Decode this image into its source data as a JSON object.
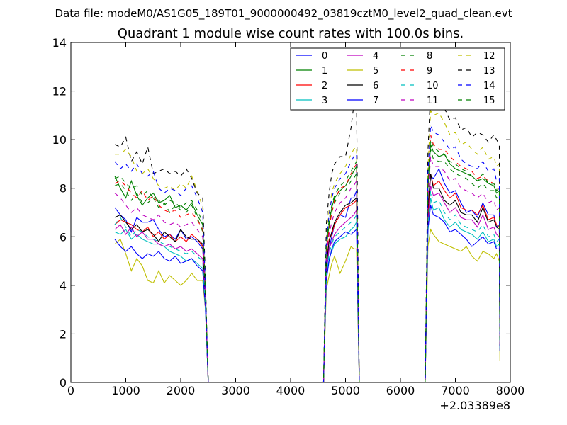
{
  "page": {
    "suptitle": "Data file: modeM0/AS1G05_189T01_9000000492_03819cztM0_level2_quad_clean.evt"
  },
  "chart_data": {
    "type": "line",
    "title": "Quadrant 1 module wise count rates with 100.0s bins.",
    "xlabel": "",
    "ylabel": "",
    "x_offset_label": "+2.03389e8",
    "xlim": [
      0,
      8000
    ],
    "ylim": [
      0,
      14
    ],
    "x_ticks": [
      0,
      1000,
      2000,
      3000,
      4000,
      5000,
      6000,
      7000,
      8000
    ],
    "y_ticks": [
      0,
      2,
      4,
      6,
      8,
      10,
      12,
      14
    ],
    "x_tick_labels": [
      "0",
      "1000",
      "2000",
      "3000",
      "4000",
      "5000",
      "6000",
      "7000",
      "8000"
    ],
    "y_tick_labels": [
      "0",
      "2",
      "4",
      "6",
      "8",
      "10",
      "12",
      "14"
    ],
    "grid": false,
    "legend_position": "top-right",
    "x": [
      800,
      900,
      1000,
      1100,
      1200,
      1300,
      1400,
      1500,
      1600,
      1700,
      1800,
      1900,
      2000,
      2100,
      2200,
      2300,
      2400,
      2450,
      2500,
      2600,
      2800,
      3000,
      3500,
      4000,
      4500,
      4600,
      4650,
      4700,
      4750,
      4800,
      4900,
      5000,
      5100,
      5150,
      5200,
      5250,
      5300,
      5400,
      5600,
      6000,
      6400,
      6450,
      6500,
      6550,
      6600,
      6700,
      6800,
      6900,
      7000,
      7100,
      7200,
      7300,
      7400,
      7500,
      7600,
      7700,
      7750,
      7800,
      7810
    ],
    "series": [
      {
        "name": "0",
        "color": "#0000ff",
        "dash": false,
        "values": [
          7.2,
          6.9,
          6.7,
          6.2,
          6.8,
          6.6,
          6.6,
          6.7,
          6.3,
          6.0,
          6.1,
          5.9,
          6.3,
          5.9,
          6.0,
          5.8,
          5.5,
          3.5,
          0,
          0,
          0,
          0,
          0,
          0,
          0,
          0,
          4.5,
          5.5,
          6.0,
          6.5,
          6.9,
          6.8,
          7.6,
          7.6,
          7.9,
          0,
          0,
          0,
          0,
          0,
          0,
          0,
          7.0,
          8.5,
          8.4,
          8.8,
          8.2,
          7.8,
          7.9,
          7.4,
          7.0,
          7.1,
          6.8,
          7.4,
          6.9,
          6.9,
          6.4,
          6.5,
          1.5
        ]
      },
      {
        "name": "1",
        "color": "#008000",
        "dash": false,
        "values": [
          8.5,
          8.0,
          7.6,
          8.3,
          7.7,
          7.3,
          7.6,
          7.8,
          7.4,
          7.5,
          7.7,
          7.2,
          7.3,
          7.1,
          7.4,
          6.9,
          6.5,
          3.8,
          0,
          0,
          0,
          0,
          0,
          0,
          0,
          0,
          5.5,
          6.5,
          7.2,
          7.6,
          7.9,
          8.1,
          8.5,
          8.7,
          8.9,
          0,
          0,
          0,
          0,
          0,
          0,
          0,
          8.0,
          9.8,
          9.5,
          9.3,
          9.4,
          9.0,
          8.8,
          8.7,
          8.6,
          8.5,
          8.3,
          8.4,
          8.2,
          8.1,
          7.8,
          7.9,
          1.7
        ]
      },
      {
        "name": "2",
        "color": "#ff0000",
        "dash": false,
        "values": [
          6.5,
          6.7,
          6.6,
          6.5,
          6.3,
          6.2,
          6.4,
          6.0,
          6.2,
          5.9,
          6.1,
          5.8,
          6.0,
          5.8,
          6.1,
          5.9,
          5.6,
          3.4,
          0,
          0,
          0,
          0,
          0,
          0,
          0,
          0,
          4.9,
          5.9,
          6.1,
          6.5,
          6.9,
          7.2,
          7.3,
          7.4,
          7.5,
          0,
          0,
          0,
          0,
          0,
          0,
          0,
          6.9,
          8.6,
          8.1,
          8.3,
          7.9,
          7.6,
          7.8,
          7.2,
          7.1,
          7.1,
          6.9,
          7.3,
          6.7,
          6.8,
          6.5,
          6.4,
          1.5
        ]
      },
      {
        "name": "3",
        "color": "#00bfbf",
        "dash": false,
        "values": [
          6.2,
          6.1,
          6.3,
          5.9,
          6.1,
          5.9,
          5.8,
          5.7,
          5.7,
          5.6,
          5.4,
          5.3,
          5.2,
          5.0,
          5.1,
          4.9,
          4.7,
          3.0,
          0,
          0,
          0,
          0,
          0,
          0,
          0,
          0,
          4.3,
          5.1,
          5.4,
          5.7,
          5.9,
          6.0,
          6.3,
          6.4,
          6.6,
          0,
          0,
          0,
          0,
          0,
          0,
          0,
          6.2,
          7.6,
          7.1,
          7.2,
          6.7,
          6.4,
          6.6,
          6.3,
          6.2,
          6.1,
          5.9,
          6.2,
          5.8,
          5.9,
          5.6,
          5.7,
          1.3
        ]
      },
      {
        "name": "4",
        "color": "#bf00bf",
        "dash": false,
        "values": [
          6.3,
          6.5,
          6.1,
          6.4,
          6.0,
          6.2,
          5.9,
          5.9,
          5.7,
          5.6,
          5.7,
          5.5,
          5.6,
          5.4,
          5.5,
          5.3,
          5.1,
          3.2,
          0,
          0,
          0,
          0,
          0,
          0,
          0,
          0,
          4.6,
          5.5,
          5.8,
          6.1,
          6.4,
          6.6,
          6.8,
          6.9,
          7.1,
          0,
          0,
          0,
          0,
          0,
          0,
          0,
          6.5,
          8.1,
          7.7,
          7.8,
          7.4,
          7.0,
          7.2,
          6.8,
          6.7,
          6.7,
          6.4,
          6.9,
          6.3,
          6.4,
          6.1,
          6.0,
          1.4
        ]
      },
      {
        "name": "5",
        "color": "#bfbf00",
        "dash": false,
        "values": [
          5.7,
          5.9,
          5.3,
          4.6,
          5.1,
          4.8,
          4.2,
          4.1,
          4.6,
          4.1,
          4.4,
          4.2,
          4.0,
          4.2,
          4.5,
          4.2,
          4.2,
          3.0,
          0,
          0,
          0,
          0,
          0,
          0,
          0,
          0,
          3.8,
          4.4,
          4.9,
          5.2,
          4.5,
          5.0,
          5.6,
          5.5,
          5.5,
          0,
          0,
          0,
          0,
          0,
          0,
          0,
          5.6,
          6.3,
          6.1,
          5.8,
          5.7,
          5.6,
          5.5,
          5.4,
          5.6,
          5.2,
          5.0,
          5.4,
          5.3,
          5.1,
          5.3,
          5.0,
          0.9
        ]
      },
      {
        "name": "6",
        "color": "#000000",
        "dash": false,
        "values": [
          6.8,
          6.9,
          6.6,
          6.3,
          6.5,
          6.2,
          6.3,
          6.1,
          5.8,
          6.2,
          6.0,
          5.8,
          6.3,
          6.0,
          5.9,
          5.9,
          5.7,
          3.4,
          0,
          0,
          0,
          0,
          0,
          0,
          0,
          0,
          4.8,
          5.8,
          6.2,
          6.6,
          7.0,
          7.3,
          7.4,
          7.5,
          7.6,
          0,
          0,
          0,
          0,
          0,
          0,
          0,
          7.2,
          8.6,
          8.0,
          8.0,
          7.5,
          7.3,
          7.5,
          7.0,
          6.9,
          6.9,
          6.6,
          7.2,
          6.6,
          6.7,
          6.4,
          6.3,
          1.5
        ]
      },
      {
        "name": "7",
        "color": "#0000ff",
        "dash": false,
        "values": [
          5.9,
          5.6,
          5.4,
          5.6,
          5.3,
          5.1,
          5.3,
          5.2,
          5.4,
          5.1,
          5.0,
          5.2,
          4.9,
          5.0,
          5.1,
          4.8,
          4.6,
          3.0,
          0,
          0,
          0,
          0,
          0,
          0,
          0,
          0,
          4.2,
          5.0,
          5.5,
          5.8,
          6.0,
          6.2,
          6.1,
          6.2,
          6.3,
          0,
          0,
          0,
          0,
          0,
          0,
          0,
          6.3,
          7.3,
          6.9,
          6.8,
          6.6,
          6.2,
          6.3,
          6.1,
          5.9,
          5.6,
          5.8,
          6.0,
          5.7,
          5.8,
          5.5,
          5.5,
          1.3
        ]
      },
      {
        "name": "8",
        "color": "#008000",
        "dash": true,
        "values": [
          8.1,
          8.2,
          7.9,
          7.5,
          7.8,
          7.4,
          7.4,
          7.6,
          7.2,
          7.4,
          7.0,
          7.3,
          7.1,
          7.0,
          7.3,
          6.8,
          6.2,
          3.7,
          0,
          0,
          0,
          0,
          0,
          0,
          0,
          0,
          5.4,
          6.4,
          7.0,
          7.4,
          7.8,
          7.9,
          8.3,
          8.4,
          8.6,
          0,
          0,
          0,
          0,
          0,
          0,
          0,
          7.8,
          9.6,
          9.2,
          9.1,
          9.1,
          8.8,
          8.6,
          8.5,
          8.4,
          8.2,
          8.0,
          8.2,
          7.9,
          7.9,
          7.6,
          7.7,
          1.6
        ]
      },
      {
        "name": "9",
        "color": "#ff0000",
        "dash": true,
        "values": [
          8.2,
          8.3,
          8.1,
          7.8,
          7.6,
          7.9,
          7.5,
          7.7,
          7.3,
          7.1,
          7.0,
          7.1,
          6.8,
          6.9,
          7.0,
          6.7,
          6.3,
          3.6,
          0,
          0,
          0,
          0,
          0,
          0,
          0,
          0,
          5.3,
          6.3,
          7.0,
          7.5,
          8.0,
          8.1,
          8.6,
          8.8,
          9.0,
          0,
          0,
          0,
          0,
          0,
          0,
          0,
          8.2,
          10.2,
          9.8,
          9.6,
          9.6,
          9.3,
          9.1,
          8.9,
          8.8,
          8.7,
          8.4,
          8.5,
          8.3,
          8.2,
          8.0,
          8.0,
          1.7
        ]
      },
      {
        "name": "10",
        "color": "#00bfbf",
        "dash": true,
        "values": [
          6.5,
          6.8,
          6.4,
          6.0,
          6.3,
          6.2,
          6.0,
          5.9,
          5.8,
          5.7,
          5.6,
          5.5,
          5.4,
          5.3,
          5.4,
          5.2,
          5.0,
          3.1,
          0,
          0,
          0,
          0,
          0,
          0,
          0,
          0,
          4.5,
          5.3,
          5.7,
          6.0,
          6.2,
          6.4,
          6.6,
          6.7,
          6.9,
          0,
          0,
          0,
          0,
          0,
          0,
          0,
          6.4,
          7.9,
          7.4,
          7.5,
          7.0,
          6.7,
          6.9,
          6.5,
          6.4,
          6.3,
          6.2,
          6.5,
          6.0,
          6.1,
          5.8,
          5.9,
          1.4
        ]
      },
      {
        "name": "11",
        "color": "#bf00bf",
        "dash": true,
        "values": [
          7.8,
          7.6,
          7.3,
          7.0,
          7.2,
          6.9,
          6.8,
          6.7,
          6.9,
          6.6,
          6.5,
          6.6,
          6.4,
          6.5,
          6.6,
          6.3,
          6.0,
          3.5,
          0,
          0,
          0,
          0,
          0,
          0,
          0,
          0,
          5.1,
          6.1,
          6.6,
          7.0,
          7.4,
          7.6,
          8.0,
          8.1,
          8.3,
          0,
          0,
          0,
          0,
          0,
          0,
          0,
          7.6,
          9.3,
          8.9,
          8.9,
          8.7,
          8.3,
          8.4,
          8.0,
          7.9,
          7.8,
          7.6,
          7.8,
          7.4,
          7.5,
          7.1,
          7.2,
          1.6
        ]
      },
      {
        "name": "12",
        "color": "#bfbf00",
        "dash": true,
        "values": [
          9.4,
          9.4,
          9.6,
          9.3,
          8.7,
          8.6,
          8.8,
          8.4,
          8.1,
          8.0,
          8.1,
          7.9,
          8.2,
          8.0,
          8.5,
          7.9,
          7.2,
          4.0,
          0,
          0,
          0,
          0,
          0,
          0,
          0,
          0,
          6.0,
          7.1,
          7.8,
          8.2,
          8.6,
          8.9,
          9.4,
          9.6,
          9.7,
          0,
          0,
          0,
          0,
          0,
          0,
          0,
          8.8,
          11.2,
          11.0,
          11.1,
          10.7,
          10.2,
          10.3,
          9.8,
          9.9,
          9.6,
          9.4,
          9.7,
          9.2,
          9.3,
          8.9,
          9.0,
          1.9
        ]
      },
      {
        "name": "13",
        "color": "#000000",
        "dash": true,
        "values": [
          9.8,
          9.7,
          10.1,
          9.1,
          9.5,
          9.0,
          9.7,
          8.6,
          8.7,
          8.8,
          8.6,
          8.7,
          8.5,
          8.8,
          8.4,
          7.8,
          7.6,
          4.2,
          0,
          0,
          0,
          0,
          0,
          0,
          0,
          0,
          6.5,
          7.8,
          8.6,
          9.0,
          9.3,
          9.3,
          10.5,
          11.4,
          11.6,
          0,
          0,
          0,
          0,
          0,
          0,
          0,
          9.5,
          12.1,
          11.7,
          11.5,
          11.3,
          10.8,
          10.9,
          10.4,
          10.5,
          10.1,
          10.3,
          10.2,
          9.9,
          10.2,
          10.0,
          9.8,
          2.0
        ]
      },
      {
        "name": "14",
        "color": "#0000ff",
        "dash": true,
        "values": [
          9.1,
          8.8,
          9.0,
          8.7,
          9.0,
          8.6,
          8.5,
          8.7,
          8.0,
          7.8,
          8.0,
          7.9,
          7.7,
          8.0,
          8.1,
          7.6,
          7.0,
          3.9,
          0,
          0,
          0,
          0,
          0,
          0,
          0,
          0,
          5.8,
          6.9,
          7.6,
          8.0,
          8.4,
          8.6,
          9.1,
          9.3,
          9.4,
          0,
          0,
          0,
          0,
          0,
          0,
          0,
          8.6,
          10.6,
          10.3,
          10.2,
          9.9,
          9.6,
          9.7,
          9.2,
          9.0,
          8.9,
          8.8,
          9.1,
          8.7,
          8.8,
          8.3,
          8.4,
          1.8
        ]
      },
      {
        "name": "15",
        "color": "#008000",
        "dash": true,
        "values": [
          8.4,
          8.5,
          8.2,
          8.0,
          8.1,
          7.7,
          7.9,
          7.6,
          7.5,
          7.3,
          7.5,
          7.4,
          7.2,
          7.4,
          7.5,
          7.1,
          6.6,
          3.7,
          0,
          0,
          0,
          0,
          0,
          0,
          0,
          0,
          5.6,
          6.7,
          7.3,
          7.7,
          8.1,
          8.3,
          8.7,
          8.9,
          9.1,
          0,
          0,
          0,
          0,
          0,
          0,
          0,
          8.3,
          10.0,
          9.7,
          9.5,
          9.4,
          9.1,
          9.0,
          8.8,
          8.7,
          8.5,
          8.3,
          8.6,
          8.2,
          8.2,
          7.9,
          8.0,
          1.7
        ]
      }
    ]
  }
}
